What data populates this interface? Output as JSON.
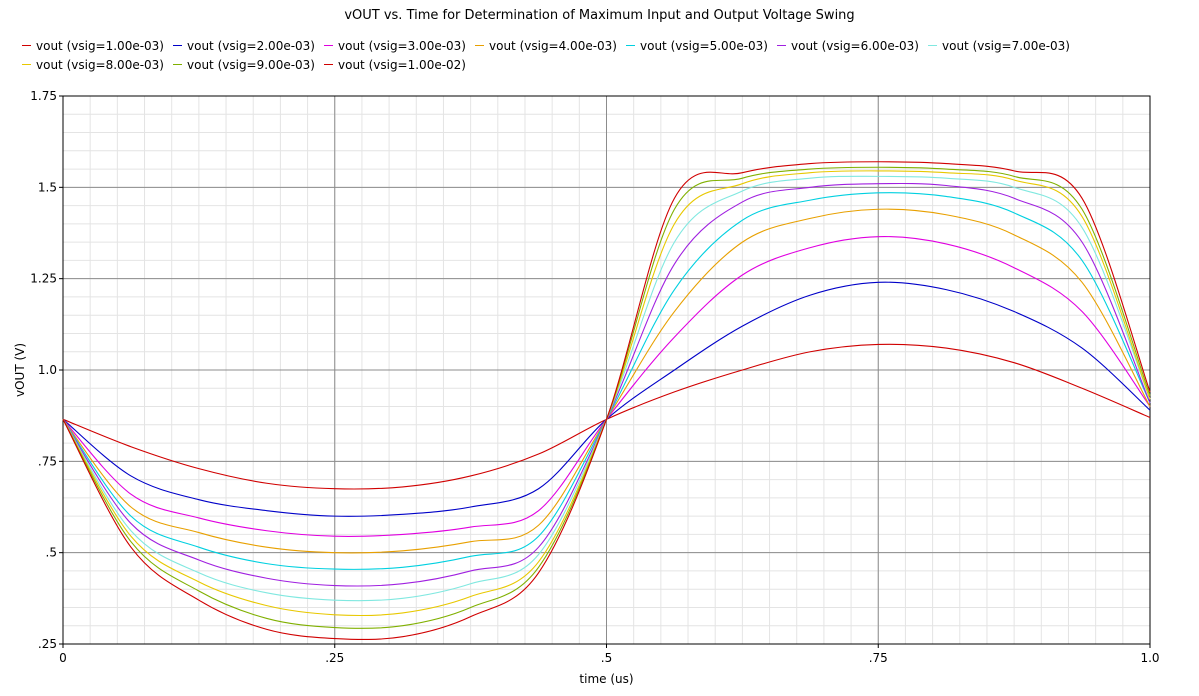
{
  "chart_data": {
    "type": "line",
    "title": "vOUT vs. Time for Determination of Maximum Input and Output Voltage Swing",
    "xlabel": "time (us)",
    "ylabel": "vOUT (V)",
    "xlim": [
      0,
      1.0
    ],
    "ylim": [
      0.25,
      1.75
    ],
    "x_ticks": [
      0,
      0.25,
      0.5,
      0.75,
      1.0
    ],
    "x_tick_labels": [
      "0",
      ".25",
      ".5",
      ".75",
      "1.0"
    ],
    "y_ticks": [
      0.25,
      0.5,
      0.75,
      1.0,
      1.25,
      1.5,
      1.75
    ],
    "y_tick_labels": [
      ".25",
      ".5",
      ".75",
      "1.0",
      "1.25",
      "1.5",
      "1.75"
    ],
    "grid": true,
    "legend_position": "top",
    "x": [
      0,
      0.0625,
      0.125,
      0.1875,
      0.25,
      0.3125,
      0.375,
      0.4375,
      0.5,
      0.5625,
      0.625,
      0.6875,
      0.75,
      0.8125,
      0.875,
      0.9375,
      1.0
    ],
    "series": [
      {
        "name": "vout (vsig=1.00e-03)",
        "color": "#d00000",
        "values": [
          0.865,
          0.79,
          0.73,
          0.69,
          0.675,
          0.68,
          0.71,
          0.77,
          0.865,
          0.94,
          1.0,
          1.05,
          1.07,
          1.06,
          1.02,
          0.95,
          0.87
        ]
      },
      {
        "name": "vout (vsig=2.00e-03)",
        "color": "#0000c8",
        "values": [
          0.865,
          0.71,
          0.645,
          0.615,
          0.6,
          0.605,
          0.625,
          0.675,
          0.865,
          1.0,
          1.12,
          1.205,
          1.24,
          1.22,
          1.16,
          1.06,
          0.89
        ]
      },
      {
        "name": "vout (vsig=3.00e-03)",
        "color": "#e000e0",
        "values": [
          0.865,
          0.66,
          0.595,
          0.56,
          0.545,
          0.55,
          0.57,
          0.615,
          0.865,
          1.09,
          1.26,
          1.335,
          1.365,
          1.345,
          1.28,
          1.16,
          0.9
        ]
      },
      {
        "name": "vout (vsig=4.00e-03)",
        "color": "#e8a000",
        "values": [
          0.865,
          0.625,
          0.555,
          0.515,
          0.5,
          0.505,
          0.53,
          0.575,
          0.865,
          1.16,
          1.35,
          1.415,
          1.44,
          1.425,
          1.37,
          1.24,
          0.9
        ]
      },
      {
        "name": "vout (vsig=5.00e-03)",
        "color": "#00d0e0",
        "values": [
          0.865,
          0.6,
          0.515,
          0.47,
          0.455,
          0.46,
          0.49,
          0.545,
          0.865,
          1.22,
          1.41,
          1.465,
          1.485,
          1.475,
          1.43,
          1.3,
          0.91
        ]
      },
      {
        "name": "vout (vsig=6.00e-03)",
        "color": "#a020e0",
        "values": [
          0.865,
          0.58,
          0.48,
          0.43,
          0.41,
          0.415,
          0.45,
          0.515,
          0.865,
          1.29,
          1.46,
          1.5,
          1.51,
          1.505,
          1.47,
          1.35,
          0.91
        ]
      },
      {
        "name": "vout (vsig=7.00e-03)",
        "color": "#80e8e0",
        "values": [
          0.865,
          0.56,
          0.445,
          0.39,
          0.37,
          0.375,
          0.415,
          0.495,
          0.865,
          1.35,
          1.49,
          1.525,
          1.53,
          1.525,
          1.5,
          1.39,
          0.92
        ]
      },
      {
        "name": "vout (vsig=8.00e-03)",
        "color": "#e8c800",
        "values": [
          0.865,
          0.545,
          0.42,
          0.355,
          0.33,
          0.335,
          0.38,
          0.475,
          0.865,
          1.4,
          1.51,
          1.54,
          1.545,
          1.54,
          1.52,
          1.42,
          0.92
        ]
      },
      {
        "name": "vout (vsig=9.00e-03)",
        "color": "#80b000",
        "values": [
          0.865,
          0.53,
          0.395,
          0.32,
          0.295,
          0.3,
          0.35,
          0.46,
          0.865,
          1.44,
          1.525,
          1.55,
          1.555,
          1.55,
          1.53,
          1.44,
          0.93
        ]
      },
      {
        "name": "vout (vsig=1.00e-02)",
        "color": "#d00000",
        "values": [
          0.865,
          0.515,
          0.37,
          0.29,
          0.265,
          0.27,
          0.325,
          0.445,
          0.865,
          1.47,
          1.54,
          1.565,
          1.57,
          1.565,
          1.545,
          1.47,
          0.94
        ]
      }
    ]
  }
}
